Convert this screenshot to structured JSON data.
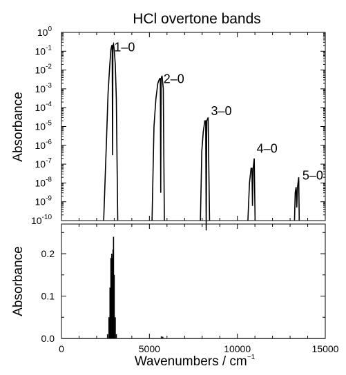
{
  "chart_data": [
    {
      "type": "line",
      "title": "HCl overtone bands",
      "ylabel": "Absorbance",
      "xlabel": "",
      "yscale": "log",
      "ylim": [
        1e-10,
        1
      ],
      "xlim": [
        0,
        15000
      ],
      "grid": false,
      "y_ticks": [
        {
          "base": "10",
          "exp": "0"
        },
        {
          "base": "10",
          "exp": "-1"
        },
        {
          "base": "10",
          "exp": "-2"
        },
        {
          "base": "10",
          "exp": "-3"
        },
        {
          "base": "10",
          "exp": "-4"
        },
        {
          "base": "10",
          "exp": "-5"
        },
        {
          "base": "10",
          "exp": "-6"
        },
        {
          "base": "10",
          "exp": "-7"
        },
        {
          "base": "10",
          "exp": "-8"
        },
        {
          "base": "10",
          "exp": "-9"
        },
        {
          "base": "10",
          "exp": "-10"
        }
      ],
      "annotations": [
        {
          "text": "1–0",
          "x": 3000,
          "y": 0.1
        },
        {
          "text": "2–0",
          "x": 5800,
          "y": 0.002
        },
        {
          "text": "3–0",
          "x": 8500,
          "y": 4e-05
        },
        {
          "text": "4–0",
          "x": 11100,
          "y": 4e-07
        },
        {
          "text": "5–0",
          "x": 13700,
          "y": 1.5e-08
        }
      ],
      "bands": [
        {
          "label": "1–0",
          "lines": [
            [
              2400,
              1e-10
            ],
            [
              2550,
              1e-06
            ],
            [
              2650,
              0.0006
            ],
            [
              2750,
              0.02
            ],
            [
              2810,
              0.12
            ],
            [
              2860,
              0.2
            ],
            [
              2885,
              0.2
            ],
            [
              2905,
              3e-07
            ],
            [
              2925,
              0.2
            ],
            [
              2960,
              0.24
            ],
            [
              3000,
              0.12
            ],
            [
              3060,
              0.02
            ],
            [
              3120,
              0.0003
            ],
            [
              3200,
              1e-10
            ]
          ]
        },
        {
          "label": "2–0",
          "lines": [
            [
              5150,
              1e-10
            ],
            [
              5260,
              1e-05
            ],
            [
              5370,
              0.0003
            ],
            [
              5480,
              0.002
            ],
            [
              5580,
              0.0035
            ],
            [
              5620,
              0.0035
            ],
            [
              5645,
              3e-09
            ],
            [
              5665,
              0.0035
            ],
            [
              5720,
              0.005
            ],
            [
              5790,
              0.001
            ],
            [
              5850,
              1e-10
            ]
          ]
        },
        {
          "label": "3–0",
          "lines": [
            [
              7900,
              1e-10
            ],
            [
              7980,
              5e-07
            ],
            [
              8060,
              5e-06
            ],
            [
              8150,
              2e-05
            ],
            [
              8200,
              2e-05
            ],
            [
              8230,
              3e-11
            ],
            [
              8260,
              2e-05
            ],
            [
              8340,
              3e-05
            ],
            [
              8420,
              1e-10
            ]
          ]
        },
        {
          "label": "4–0",
          "lines": [
            [
              10600,
              1e-10
            ],
            [
              10690,
              1e-08
            ],
            [
              10780,
              6e-08
            ],
            [
              10830,
              6e-08
            ],
            [
              10860,
              6e-10
            ],
            [
              10900,
              6e-08
            ],
            [
              10960,
              2e-07
            ],
            [
              11010,
              1e-10
            ]
          ]
        },
        {
          "label": "5–0",
          "lines": [
            [
              13250,
              1e-10
            ],
            [
              13290,
              3e-09
            ],
            [
              13340,
              6e-09
            ],
            [
              13380,
              5e-10
            ],
            [
              13420,
              6e-09
            ],
            [
              13490,
              2e-08
            ],
            [
              13520,
              1e-10
            ]
          ]
        }
      ]
    },
    {
      "type": "line",
      "xlabel": "Wavenumbers / cm",
      "xlabel_sup": "−1",
      "ylabel": "Absorbance",
      "yscale": "linear",
      "xlim": [
        0,
        15000
      ],
      "ylim": [
        0,
        0.27
      ],
      "grid": false,
      "x_ticks": [
        0,
        5000,
        10000,
        15000
      ],
      "x_tick_labels": [
        "0",
        "5000",
        "10000",
        "15000"
      ],
      "y_ticks": [
        0.0,
        0.1,
        0.2
      ],
      "y_tick_labels": [
        "0.0",
        "0.1",
        "0.2"
      ],
      "lines": [
        [
          2620,
          0.01
        ],
        [
          2700,
          0.05
        ],
        [
          2760,
          0.12
        ],
        [
          2810,
          0.19
        ],
        [
          2860,
          0.2
        ],
        [
          2890,
          0.19
        ],
        [
          2905,
          0
        ],
        [
          2930,
          0.21
        ],
        [
          2960,
          0.24
        ],
        [
          3000,
          0.15
        ],
        [
          3060,
          0.05
        ],
        [
          3120,
          0.01
        ],
        [
          5680,
          0.005
        ],
        [
          5760,
          0.004
        ]
      ]
    }
  ]
}
